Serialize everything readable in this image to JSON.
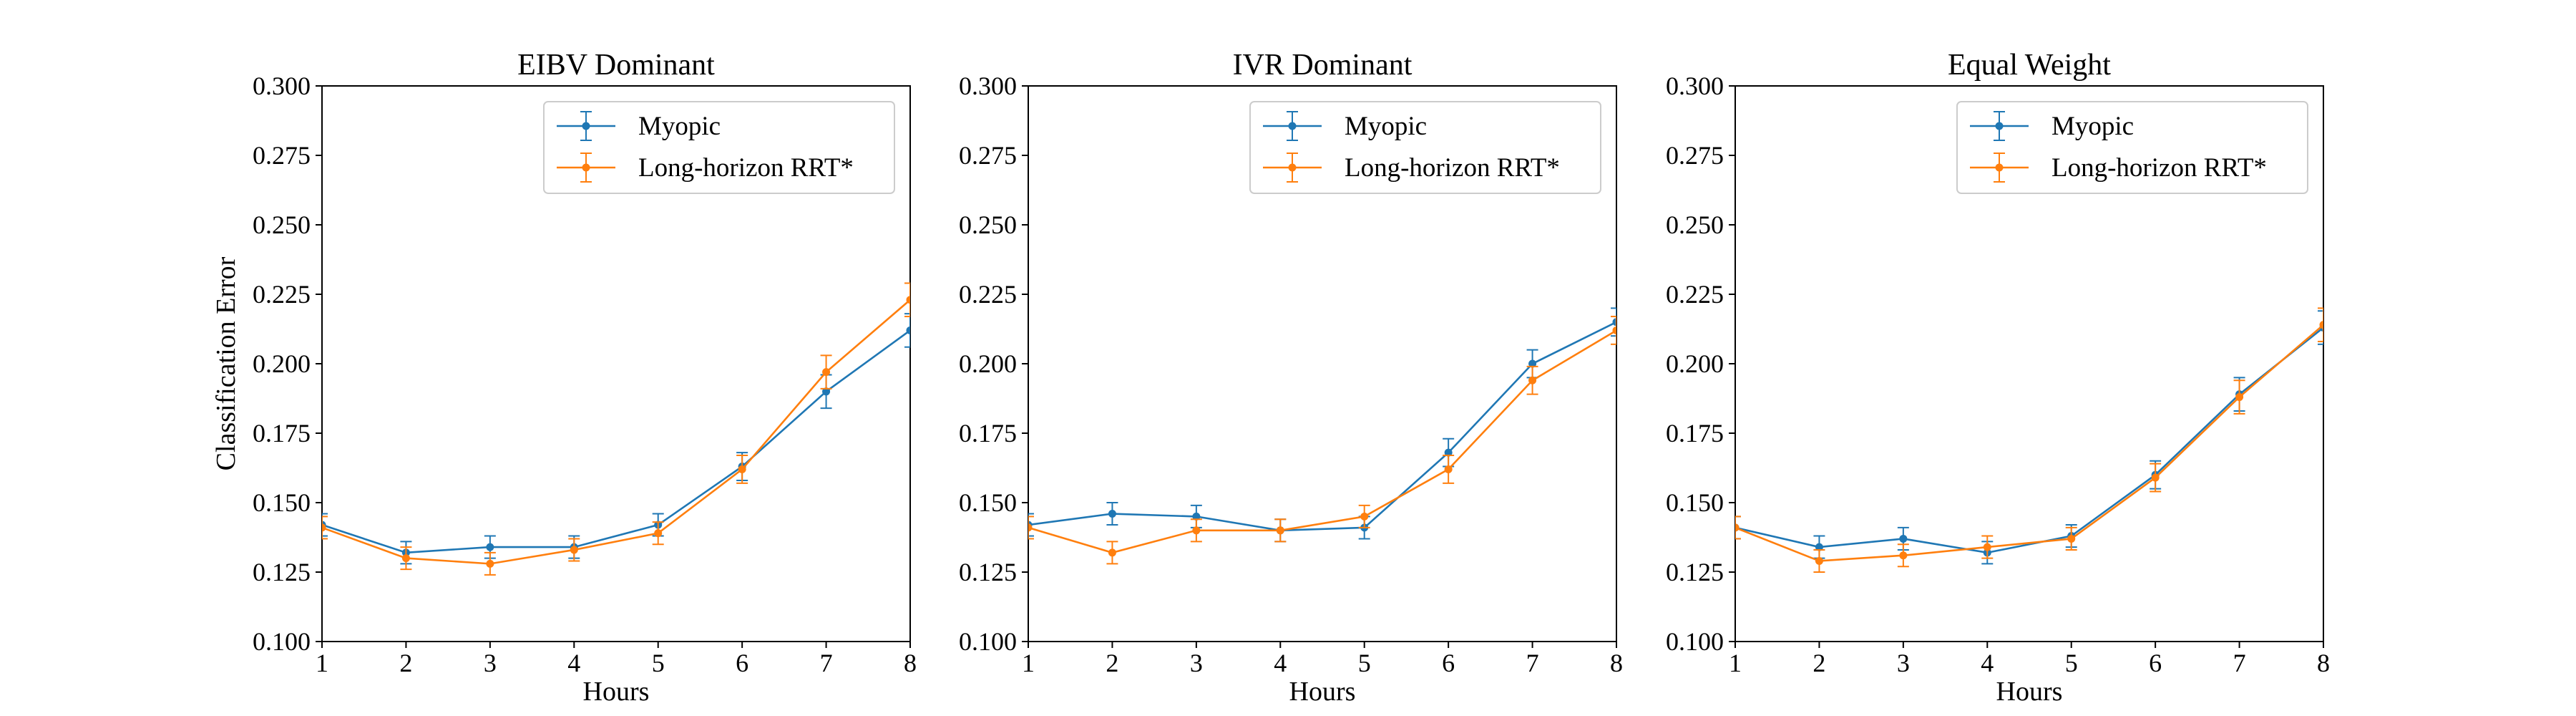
{
  "colors": {
    "Myopic": "#1f77b4",
    "Long-horizon RRT*": "#ff7f0e"
  },
  "chart_data": [
    {
      "type": "line",
      "title": "EIBV Dominant",
      "xlabel": "Hours",
      "ylabel": "Classification Error",
      "x": [
        1,
        2,
        3,
        4,
        5,
        6,
        7,
        8
      ],
      "xticks": [
        "1",
        "2",
        "3",
        "4",
        "5",
        "6",
        "7",
        "8"
      ],
      "xlim": [
        1,
        8
      ],
      "ylim": [
        0.1,
        0.3
      ],
      "yticks": [
        "0.100",
        "0.125",
        "0.150",
        "0.175",
        "0.200",
        "0.225",
        "0.250",
        "0.275",
        "0.300"
      ],
      "legend": "upper-right",
      "series": [
        {
          "name": "Myopic",
          "values": [
            0.142,
            0.132,
            0.134,
            0.134,
            0.142,
            0.163,
            0.19,
            0.212
          ],
          "errors": [
            0.004,
            0.004,
            0.004,
            0.004,
            0.004,
            0.005,
            0.006,
            0.006
          ]
        },
        {
          "name": "Long-horizon RRT*",
          "values": [
            0.141,
            0.13,
            0.128,
            0.133,
            0.139,
            0.162,
            0.197,
            0.223
          ],
          "errors": [
            0.004,
            0.004,
            0.004,
            0.004,
            0.004,
            0.005,
            0.006,
            0.006
          ]
        }
      ]
    },
    {
      "type": "line",
      "title": "IVR Dominant",
      "xlabel": "Hours",
      "ylabel": "",
      "x": [
        1,
        2,
        3,
        4,
        5,
        6,
        7,
        8
      ],
      "xticks": [
        "1",
        "2",
        "3",
        "4",
        "5",
        "6",
        "7",
        "8"
      ],
      "xlim": [
        1,
        8
      ],
      "ylim": [
        0.1,
        0.3
      ],
      "yticks": [
        "0.100",
        "0.125",
        "0.150",
        "0.175",
        "0.200",
        "0.225",
        "0.250",
        "0.275",
        "0.300"
      ],
      "legend": "upper-right",
      "series": [
        {
          "name": "Myopic",
          "values": [
            0.142,
            0.146,
            0.145,
            0.14,
            0.141,
            0.168,
            0.2,
            0.215
          ],
          "errors": [
            0.004,
            0.004,
            0.004,
            0.004,
            0.004,
            0.005,
            0.005,
            0.005
          ]
        },
        {
          "name": "Long-horizon RRT*",
          "values": [
            0.141,
            0.132,
            0.14,
            0.14,
            0.145,
            0.162,
            0.194,
            0.212
          ],
          "errors": [
            0.004,
            0.004,
            0.004,
            0.004,
            0.004,
            0.005,
            0.005,
            0.005
          ]
        }
      ]
    },
    {
      "type": "line",
      "title": "Equal Weight",
      "xlabel": "Hours",
      "ylabel": "",
      "x": [
        1,
        2,
        3,
        4,
        5,
        6,
        7,
        8
      ],
      "xticks": [
        "1",
        "2",
        "3",
        "4",
        "5",
        "6",
        "7",
        "8"
      ],
      "xlim": [
        1,
        8
      ],
      "ylim": [
        0.1,
        0.3
      ],
      "yticks": [
        "0.100",
        "0.125",
        "0.150",
        "0.175",
        "0.200",
        "0.225",
        "0.250",
        "0.275",
        "0.300"
      ],
      "legend": "upper-right",
      "series": [
        {
          "name": "Myopic",
          "values": [
            0.141,
            0.134,
            0.137,
            0.132,
            0.138,
            0.16,
            0.189,
            0.213
          ],
          "errors": [
            0.004,
            0.004,
            0.004,
            0.004,
            0.004,
            0.005,
            0.006,
            0.006
          ]
        },
        {
          "name": "Long-horizon RRT*",
          "values": [
            0.141,
            0.129,
            0.131,
            0.134,
            0.137,
            0.159,
            0.188,
            0.214
          ],
          "errors": [
            0.004,
            0.004,
            0.004,
            0.004,
            0.004,
            0.005,
            0.006,
            0.006
          ]
        }
      ]
    }
  ]
}
